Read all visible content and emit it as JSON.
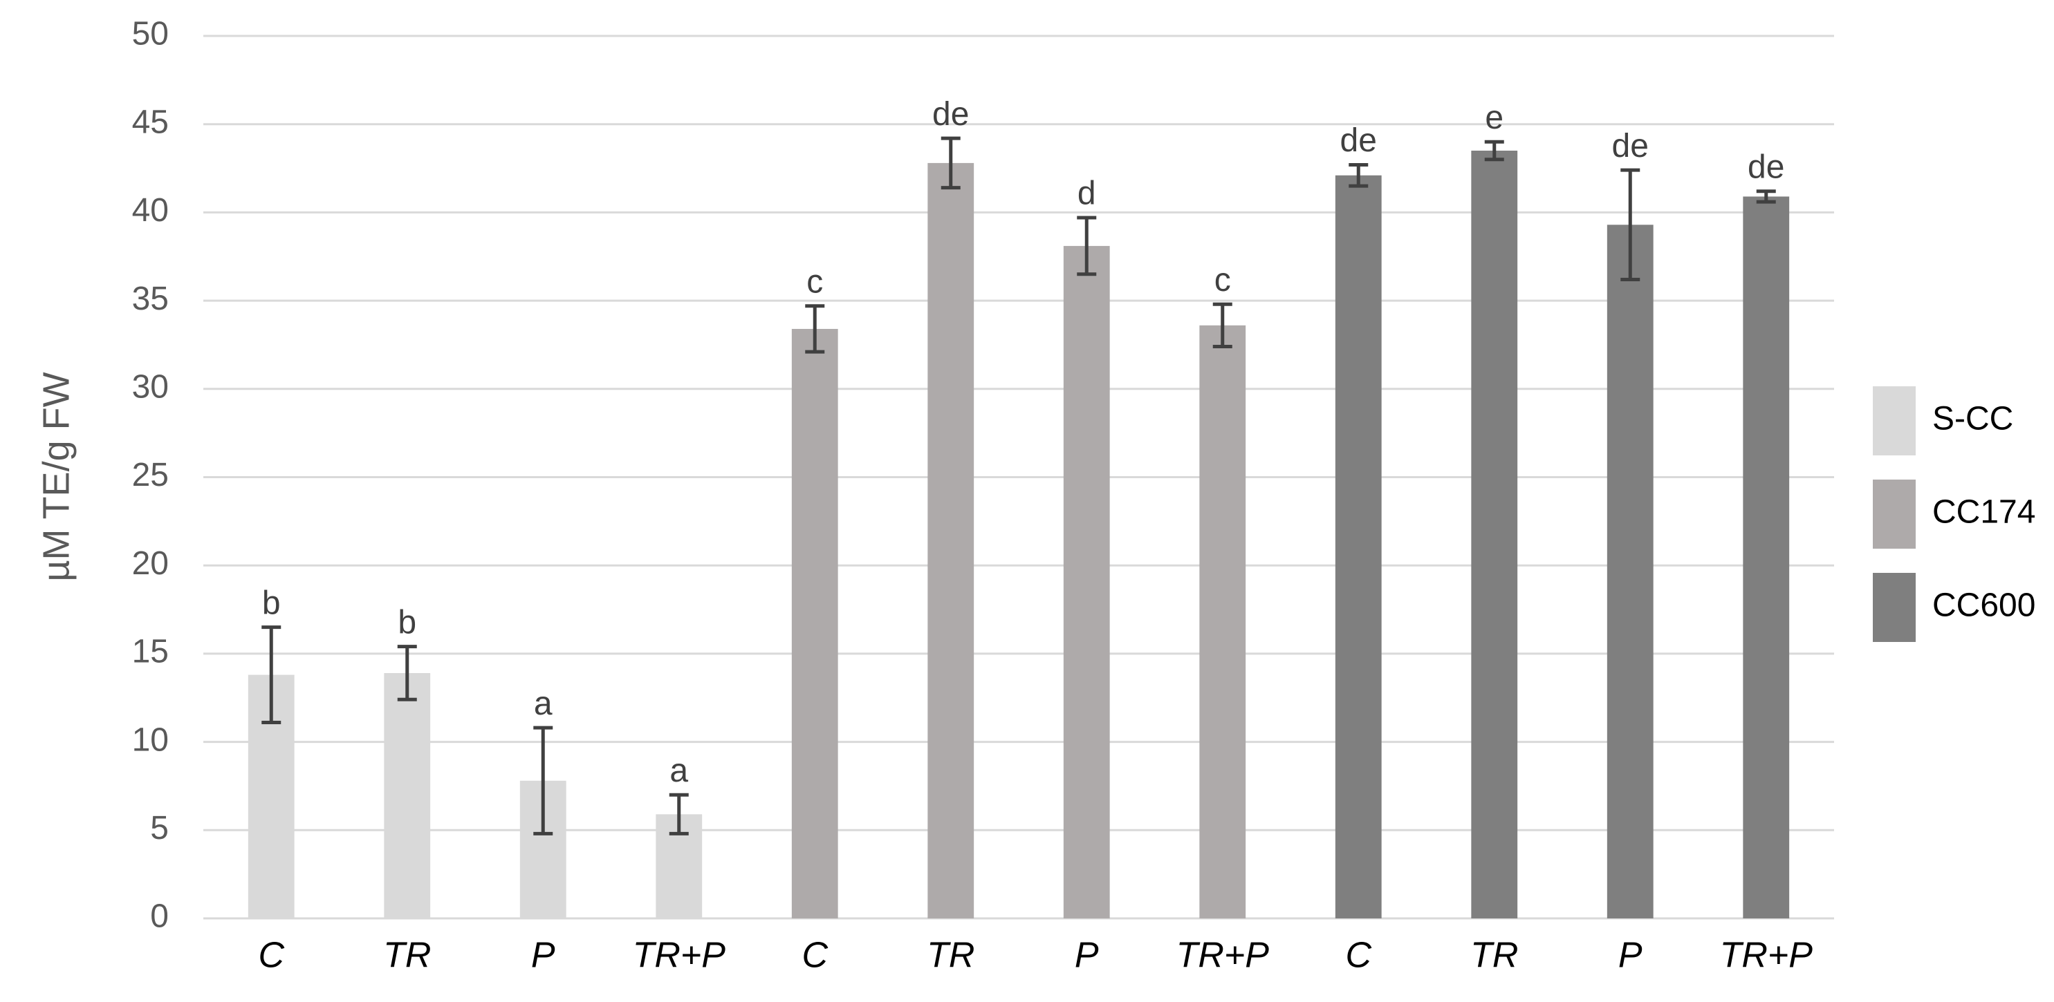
{
  "chart_data": {
    "type": "bar",
    "ylabel": "µM TE/g FW",
    "categories": [
      "C",
      "TR",
      "P",
      "TR+P",
      "C",
      "TR",
      "P",
      "TR+P",
      "C",
      "TR",
      "P",
      "TR+P"
    ],
    "series": [
      {
        "name": "S-CC",
        "color": "#d9d9d9",
        "values": [
          13.8,
          13.9,
          7.8,
          5.9,
          null,
          null,
          null,
          null,
          null,
          null,
          null,
          null
        ],
        "errors": [
          2.7,
          1.5,
          3.0,
          1.1,
          null,
          null,
          null,
          null,
          null,
          null,
          null,
          null
        ],
        "annotations": [
          "b",
          "b",
          "a",
          "a",
          null,
          null,
          null,
          null,
          null,
          null,
          null,
          null
        ]
      },
      {
        "name": "CC174",
        "color": "#aeaaaa",
        "values": [
          null,
          null,
          null,
          null,
          33.4,
          42.8,
          38.1,
          33.6,
          null,
          null,
          null,
          null
        ],
        "errors": [
          null,
          null,
          null,
          null,
          1.3,
          1.4,
          1.6,
          1.2,
          null,
          null,
          null,
          null
        ],
        "annotations": [
          null,
          null,
          null,
          null,
          "c",
          "de",
          "d",
          "c",
          null,
          null,
          null,
          null
        ]
      },
      {
        "name": "CC600",
        "color": "#7f7f7f",
        "values": [
          null,
          null,
          null,
          null,
          null,
          null,
          null,
          null,
          42.1,
          43.5,
          39.3,
          40.9
        ],
        "errors": [
          null,
          null,
          null,
          null,
          null,
          null,
          null,
          null,
          0.6,
          0.5,
          3.1,
          0.3
        ],
        "annotations": [
          null,
          null,
          null,
          null,
          null,
          null,
          null,
          null,
          "de",
          "e",
          "de",
          "de"
        ]
      }
    ],
    "ylim": [
      0,
      50
    ],
    "yticks": [
      0,
      5,
      10,
      15,
      20,
      25,
      30,
      35,
      40,
      45,
      50
    ],
    "grid": true,
    "legend": "right"
  }
}
